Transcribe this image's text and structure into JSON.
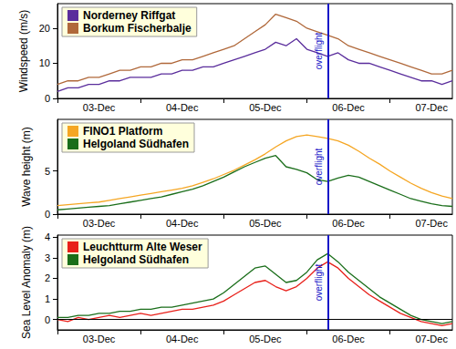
{
  "chart_data": [
    {
      "type": "line",
      "y_label": "Windspeed (m/s)",
      "categories": [
        null,
        null,
        null,
        null,
        "03-Dec",
        null,
        null,
        null,
        null,
        null,
        null,
        null,
        "04-Dec",
        null,
        null,
        null,
        null,
        null,
        null,
        null,
        "05-Dec",
        null,
        null,
        null,
        null,
        null,
        null,
        null,
        "06-Dec",
        null,
        null,
        null,
        null,
        null,
        null,
        null,
        "07-Dec",
        null,
        null
      ],
      "series": [
        {
          "name": "Norderney Riffgat",
          "color": "#5a2d9c",
          "values": [
            2,
            3,
            3,
            4,
            4,
            5,
            5,
            6,
            6,
            6,
            7,
            7,
            8,
            8,
            9,
            9,
            10,
            11,
            12,
            13,
            14,
            16,
            15,
            17,
            14,
            13,
            12,
            13,
            11,
            10,
            10,
            9,
            8,
            7,
            6,
            5,
            5,
            4,
            5
          ]
        },
        {
          "name": "Borkum Fischerbalje",
          "color": "#b0683a",
          "values": [
            4,
            5,
            5,
            6,
            6,
            7,
            8,
            8,
            9,
            9,
            10,
            10,
            11,
            11,
            12,
            13,
            14,
            15,
            17,
            19,
            21,
            24,
            23,
            22,
            20,
            19,
            18,
            17,
            15,
            14,
            13,
            12,
            11,
            10,
            9,
            8,
            7,
            7,
            8
          ]
        }
      ],
      "ylim": [
        0,
        27
      ],
      "yticks": [
        0,
        10,
        20
      ],
      "grid": false,
      "legend": "upper left",
      "annotations": [
        {
          "text": "overflight",
          "x": 26
        }
      ]
    },
    {
      "type": "line",
      "y_label": "Wave height (m)",
      "categories": [
        null,
        null,
        null,
        null,
        "03-Dec",
        null,
        null,
        null,
        null,
        null,
        null,
        null,
        "04-Dec",
        null,
        null,
        null,
        null,
        null,
        null,
        null,
        "05-Dec",
        null,
        null,
        null,
        null,
        null,
        null,
        null,
        "06-Dec",
        null,
        null,
        null,
        null,
        null,
        null,
        null,
        "07-Dec",
        null,
        null
      ],
      "series": [
        {
          "name": "FINO1 Platform",
          "color": "#f5a623",
          "values": [
            1.0,
            1.1,
            1.2,
            1.3,
            1.4,
            1.6,
            1.8,
            2.0,
            2.2,
            2.4,
            2.6,
            2.8,
            3.0,
            3.3,
            3.7,
            4.1,
            4.6,
            5.1,
            5.7,
            6.3,
            7.0,
            7.8,
            8.5,
            9.0,
            9.2,
            9.0,
            8.8,
            8.5,
            8.0,
            7.3,
            6.5,
            5.8,
            5.0,
            4.3,
            3.6,
            3.0,
            2.5,
            2.1,
            1.8
          ]
        },
        {
          "name": "Helgoland Südhafen",
          "color": "#1a6e1a",
          "values": [
            0.5,
            0.6,
            0.7,
            0.8,
            0.9,
            1.0,
            1.2,
            1.4,
            1.6,
            1.8,
            2.0,
            2.3,
            2.6,
            2.9,
            3.3,
            3.8,
            4.3,
            4.9,
            5.5,
            6.0,
            6.5,
            6.8,
            5.5,
            5.2,
            4.8,
            4.0,
            3.8,
            4.2,
            4.5,
            4.3,
            3.8,
            3.3,
            2.8,
            2.3,
            1.8,
            1.5,
            1.2,
            1.0,
            0.9
          ]
        }
      ],
      "ylim": [
        0,
        11
      ],
      "yticks": [
        0,
        5
      ],
      "grid": false,
      "legend": "upper left",
      "annotations": [
        {
          "text": "overflight",
          "x": 26
        }
      ]
    },
    {
      "type": "line",
      "y_label": "Sea Level Anomaly (m)",
      "categories": [
        null,
        null,
        null,
        null,
        "03-Dec",
        null,
        null,
        null,
        null,
        null,
        null,
        null,
        "04-Dec",
        null,
        null,
        null,
        null,
        null,
        null,
        null,
        "05-Dec",
        null,
        null,
        null,
        null,
        null,
        null,
        null,
        "06-Dec",
        null,
        null,
        null,
        null,
        null,
        null,
        null,
        "07-Dec",
        null,
        null
      ],
      "series": [
        {
          "name": "Leuchtturm Alte Weser",
          "color": "#e8201a",
          "values": [
            0.0,
            -0.1,
            0.1,
            0.0,
            0.1,
            0.2,
            0.1,
            0.2,
            0.3,
            0.2,
            0.3,
            0.4,
            0.5,
            0.5,
            0.6,
            0.7,
            0.9,
            1.2,
            1.5,
            1.8,
            1.9,
            1.6,
            1.4,
            1.6,
            2.0,
            2.5,
            2.8,
            2.5,
            2.0,
            1.6,
            1.2,
            0.9,
            0.6,
            0.3,
            0.1,
            -0.1,
            -0.2,
            -0.3,
            -0.2
          ]
        },
        {
          "name": "Helgoland Südhafen",
          "color": "#1a6e1a",
          "values": [
            0.1,
            0.1,
            0.2,
            0.2,
            0.3,
            0.3,
            0.4,
            0.4,
            0.5,
            0.5,
            0.6,
            0.6,
            0.7,
            0.8,
            0.9,
            1.0,
            1.3,
            1.7,
            2.1,
            2.5,
            2.6,
            2.2,
            1.8,
            1.9,
            2.3,
            2.9,
            3.2,
            2.8,
            2.3,
            1.9,
            1.5,
            1.1,
            0.8,
            0.5,
            0.2,
            0.0,
            -0.1,
            -0.2,
            -0.1
          ]
        }
      ],
      "ylim": [
        -0.5,
        4.1
      ],
      "yticks": [
        0,
        1,
        2,
        3,
        4
      ],
      "grid": false,
      "legend": "upper left",
      "annotations": [
        {
          "text": "overflight",
          "x": 26
        },
        {
          "y": 0
        }
      ]
    }
  ]
}
